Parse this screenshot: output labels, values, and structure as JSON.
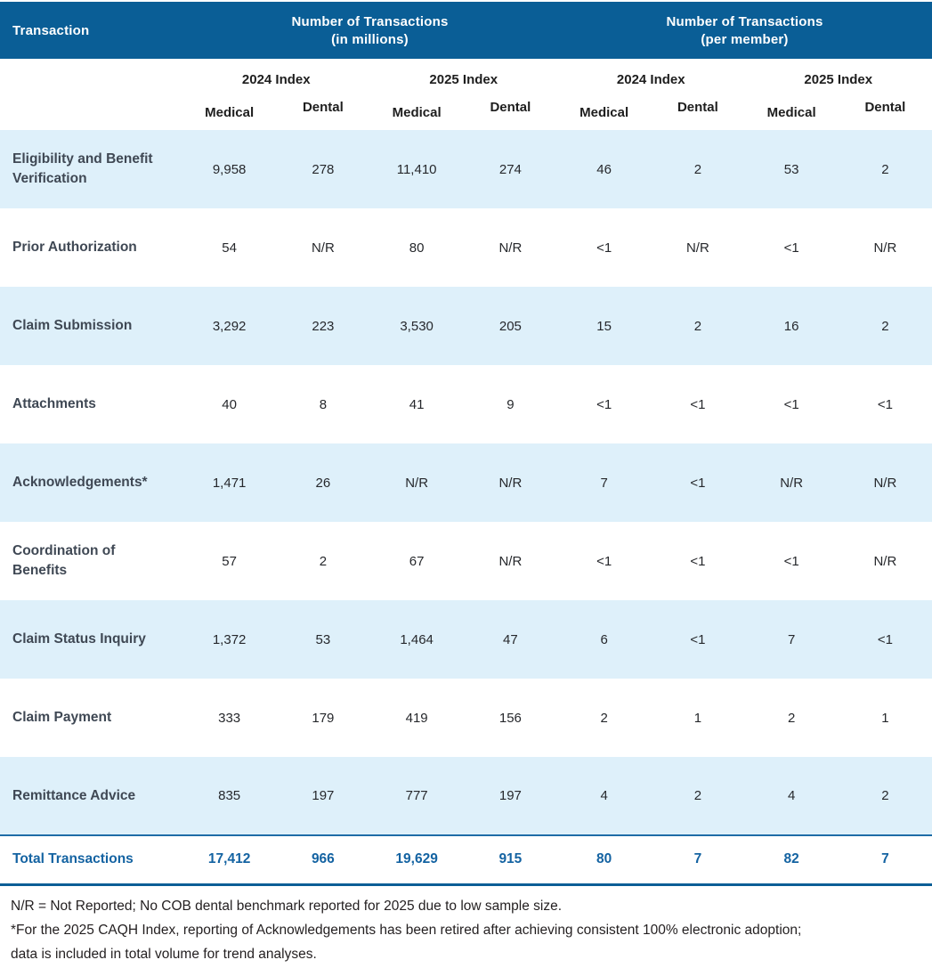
{
  "colors": {
    "header_bar_blue": "#0A5E96",
    "row_stripe_blue": "#DEF0FA",
    "total_accent_blue": "#1463A2",
    "total_top_rule_blue": "#1E6CA7",
    "body_text_dark": "#231F20",
    "row_label_slate": "#3F4854"
  },
  "chart_data": {
    "type": "table",
    "corner_header": "Transaction",
    "column_groups": [
      {
        "line1": "Number of Transactions",
        "line2": "(in millions)"
      },
      {
        "line1": "Number of Transactions",
        "line2": "(per member)"
      }
    ],
    "index_headers": [
      "2024 Index",
      "2025 Index",
      "2024 Index",
      "2025 Index"
    ],
    "subheaders": [
      "Medical",
      "Dental",
      "Medical",
      "Dental",
      "Medical",
      "Dental",
      "Medical",
      "Dental"
    ],
    "rows": [
      {
        "label": "Eligibility and Benefit Verification",
        "values": [
          "9,958",
          "278",
          "11,410",
          "274",
          "46",
          "2",
          "53",
          "2"
        ]
      },
      {
        "label": "Prior Authorization",
        "values": [
          "54",
          "N/R",
          "80",
          "N/R",
          "<1",
          "N/R",
          "<1",
          "N/R"
        ]
      },
      {
        "label": "Claim Submission",
        "values": [
          "3,292",
          "223",
          "3,530",
          "205",
          "15",
          "2",
          "16",
          "2"
        ]
      },
      {
        "label": "Attachments",
        "values": [
          "40",
          "8",
          "41",
          "9",
          "<1",
          "<1",
          "<1",
          "<1"
        ]
      },
      {
        "label": "Acknowledgements*",
        "values": [
          "1,471",
          "26",
          "N/R",
          "N/R",
          "7",
          "<1",
          "N/R",
          "N/R"
        ]
      },
      {
        "label": "Coordination of Benefits",
        "values": [
          "57",
          "2",
          "67",
          "N/R",
          "<1",
          "<1",
          "<1",
          "N/R"
        ]
      },
      {
        "label": "Claim Status Inquiry",
        "values": [
          "1,372",
          "53",
          "1,464",
          "47",
          "6",
          "<1",
          "7",
          "<1"
        ]
      },
      {
        "label": "Claim Payment",
        "values": [
          "333",
          "179",
          "419",
          "156",
          "2",
          "1",
          "2",
          "1"
        ]
      },
      {
        "label": "Remittance Advice",
        "values": [
          "835",
          "197",
          "777",
          "197",
          "4",
          "2",
          "4",
          "2"
        ]
      }
    ],
    "total": {
      "label": "Total Transactions",
      "values": [
        "17,412",
        "966",
        "19,629",
        "915",
        "80",
        "7",
        "82",
        "7"
      ]
    },
    "footnotes": [
      {
        "lines": [
          "N/R = Not Reported; No COB dental benchmark reported for 2025 due to low sample size."
        ]
      },
      {
        "lines": [
          "*For the 2025 CAQH Index, reporting of Acknowledgements has been retired after achieving consistent 100% electronic adoption;",
          "data is included in total volume for trend analyses."
        ]
      }
    ]
  }
}
